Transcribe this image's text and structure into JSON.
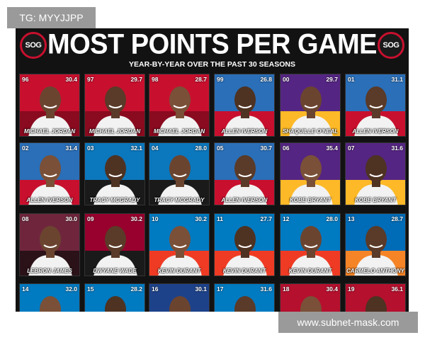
{
  "header": {
    "logo_text": "SOG",
    "title": "MOST POINTS PER GAME",
    "subtitle": "YEAR-BY-YEAR OVER THE PAST 30 SEASONS"
  },
  "watermarks": {
    "top_left": "TG: MYYJJPP",
    "bottom_right": "www.subnet-mask.com"
  },
  "cards": [
    {
      "season": "96",
      "ppg": "30.4",
      "player": "MICHAEL JORDAN"
    },
    {
      "season": "97",
      "ppg": "29.7",
      "player": "MICHAEL JORDAN"
    },
    {
      "season": "98",
      "ppg": "28.7",
      "player": "MICHAEL JORDAN"
    },
    {
      "season": "99",
      "ppg": "26.8",
      "player": "ALLEN IVERSON"
    },
    {
      "season": "00",
      "ppg": "29.7",
      "player": "SHAQUILLE O'NEAL"
    },
    {
      "season": "01",
      "ppg": "31.1",
      "player": "ALLEN IVERSON"
    },
    {
      "season": "02",
      "ppg": "31.4",
      "player": "ALLEN IVERSON"
    },
    {
      "season": "03",
      "ppg": "32.1",
      "player": "TRACY MCGRADY"
    },
    {
      "season": "04",
      "ppg": "28.0",
      "player": "TRACY MCGRADY"
    },
    {
      "season": "05",
      "ppg": "30.7",
      "player": "ALLEN IVERSON"
    },
    {
      "season": "06",
      "ppg": "35.4",
      "player": "KOBE BRYANT"
    },
    {
      "season": "07",
      "ppg": "31.6",
      "player": "KOBE BRYANT"
    },
    {
      "season": "08",
      "ppg": "30.0",
      "player": "LEBRON JAMES"
    },
    {
      "season": "09",
      "ppg": "30.2",
      "player": "DWYANE WADE"
    },
    {
      "season": "10",
      "ppg": "30.2",
      "player": "KEVIN DURANT"
    },
    {
      "season": "11",
      "ppg": "27.7",
      "player": "KEVIN DURANT"
    },
    {
      "season": "12",
      "ppg": "28.0",
      "player": "KEVIN DURANT"
    },
    {
      "season": "13",
      "ppg": "28.7",
      "player": "CARMELO ANTHONY"
    },
    {
      "season": "14",
      "ppg": "32.0"
    },
    {
      "season": "15",
      "ppg": "28.2"
    },
    {
      "season": "16",
      "ppg": "30.1"
    },
    {
      "season": "17",
      "ppg": "31.6"
    },
    {
      "season": "18",
      "ppg": "30.4"
    },
    {
      "season": "19",
      "ppg": "36.1"
    }
  ]
}
